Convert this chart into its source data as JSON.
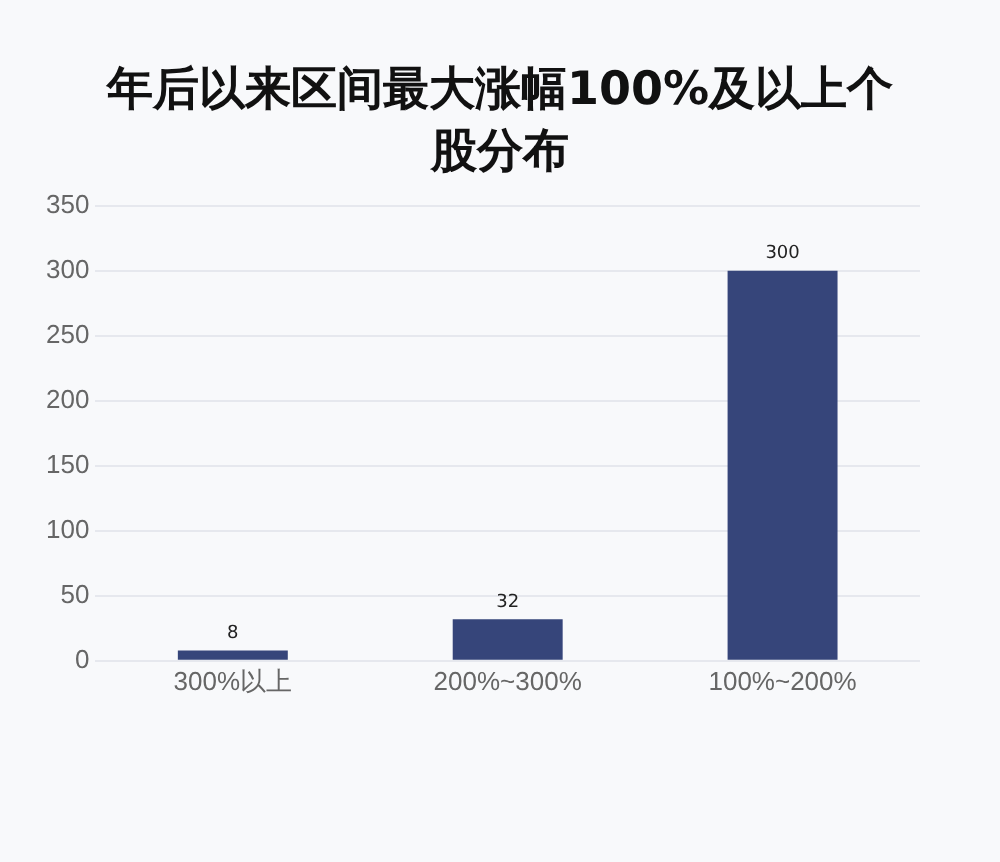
{
  "chart_data": {
    "type": "bar",
    "title": "年后以来区间最大涨幅100%及以上个股分布",
    "categories": [
      "300%以上",
      "200%~300%",
      "100%~200%"
    ],
    "values": [
      8,
      32,
      300
    ],
    "color": "#36457a",
    "ylim": [
      0,
      350
    ],
    "yticks": [
      0,
      50,
      100,
      150,
      200,
      250,
      300,
      350
    ],
    "grid": "y",
    "data_labels": true
  }
}
